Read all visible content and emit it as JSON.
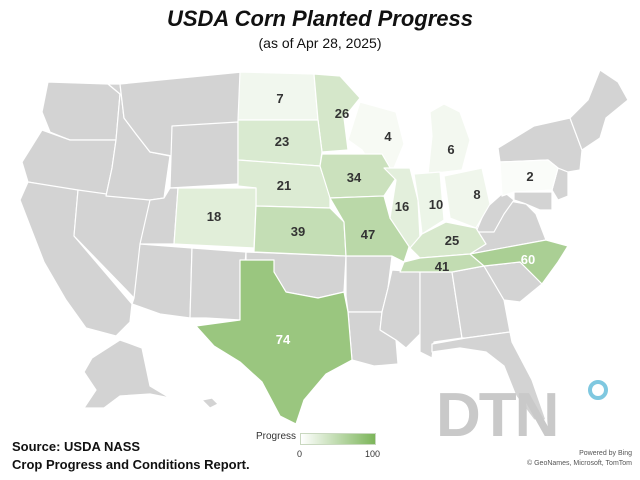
{
  "title": "USDA Corn Planted Progress",
  "subtitle": "(as of Apr 28, 2025)",
  "legend": {
    "label": "Progress",
    "min_label": "0",
    "max_label": "100",
    "min_value": 0,
    "max_value": 100,
    "color_low": "#ffffff",
    "color_high": "#7cb55a"
  },
  "source": {
    "line1": "Source: USDA NASS",
    "line2": "Crop Progress and Conditions Report."
  },
  "brand": "DTN",
  "credits": {
    "powered": "Powered by Bing",
    "copyright": "© GeoNames, Microsoft, TomTom"
  },
  "states": [
    {
      "id": "ND",
      "value": 7
    },
    {
      "id": "MN",
      "value": 26
    },
    {
      "id": "SD",
      "value": 23
    },
    {
      "id": "WI",
      "value": 4
    },
    {
      "id": "MI",
      "value": 6
    },
    {
      "id": "NE",
      "value": 21
    },
    {
      "id": "IA",
      "value": 34
    },
    {
      "id": "CO",
      "value": 18
    },
    {
      "id": "KS",
      "value": 39
    },
    {
      "id": "MO",
      "value": 47
    },
    {
      "id": "IL",
      "value": 16
    },
    {
      "id": "IN",
      "value": 10
    },
    {
      "id": "OH",
      "value": 8
    },
    {
      "id": "PA",
      "value": 2
    },
    {
      "id": "KY",
      "value": 25
    },
    {
      "id": "TN",
      "value": 41
    },
    {
      "id": "NC",
      "value": 60
    },
    {
      "id": "TX",
      "value": 74
    }
  ]
}
